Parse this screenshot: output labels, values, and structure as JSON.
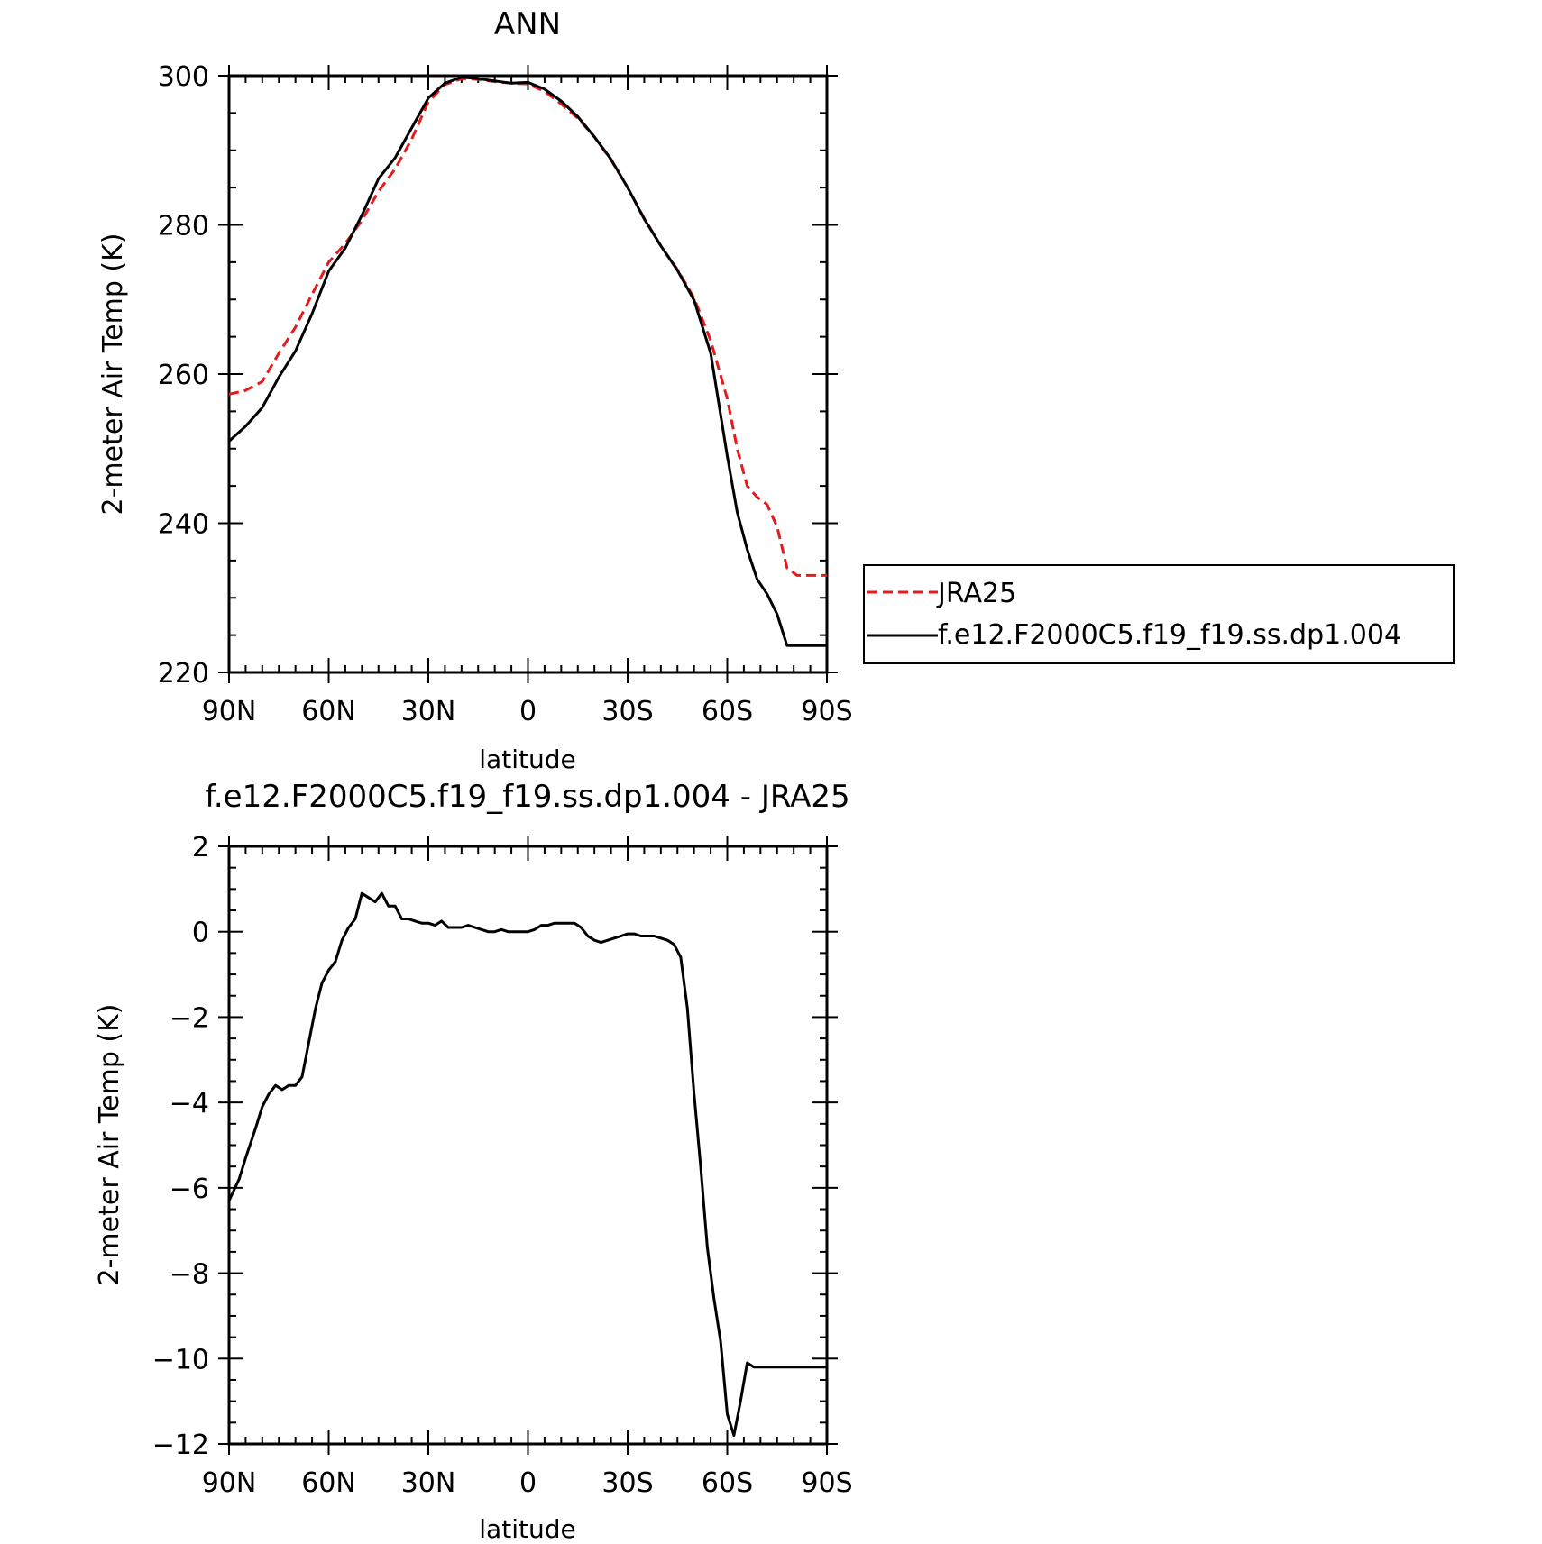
{
  "chart_data": [
    {
      "type": "line",
      "title": "ANN",
      "xlabel": "latitude",
      "ylabel": "2-meter Air Temp (K)",
      "xlim": [
        90,
        -90
      ],
      "ylim": [
        220,
        300
      ],
      "x_ticks": [
        90,
        60,
        30,
        0,
        -30,
        -60,
        -90
      ],
      "x_tick_labels": [
        "90N",
        "60N",
        "30N",
        "0",
        "30S",
        "60S",
        "90S"
      ],
      "y_ticks": [
        220,
        240,
        260,
        280,
        300
      ],
      "y_tick_labels": [
        "220",
        "240",
        "260",
        "280",
        "300"
      ],
      "grid": false,
      "legend": {
        "placement": "right",
        "entries": [
          "JRA25",
          "f.e12.F2000C5.f19_f19.ss.dp1.004"
        ]
      },
      "series": [
        {
          "name": "JRA25",
          "color": "#e41a1c",
          "dash": "dashed",
          "x": [
            90,
            85,
            80,
            75,
            70,
            65,
            60,
            55,
            50,
            45,
            40,
            35,
            30,
            25,
            20,
            15,
            10,
            5,
            0,
            -5,
            -10,
            -15,
            -20,
            -25,
            -30,
            -35,
            -40,
            -45,
            -50,
            -55,
            -60,
            -63,
            -66,
            -69,
            -72,
            -75,
            -78,
            -81,
            -84,
            -87,
            -90
          ],
          "y": [
            257.3,
            257.8,
            259.0,
            262.8,
            266.3,
            270.7,
            275.0,
            277.5,
            280.6,
            284.5,
            287.5,
            291.5,
            296.5,
            298.8,
            299.6,
            299.5,
            299.2,
            299.0,
            298.9,
            297.9,
            296.2,
            294.3,
            291.8,
            288.7,
            285.0,
            280.9,
            277.2,
            274.0,
            270.2,
            264.5,
            256.7,
            250.0,
            245.0,
            243.5,
            242.5,
            239.5,
            234.0,
            233.0,
            233.0,
            233.0,
            233.0
          ]
        },
        {
          "name": "f.e12.F2000C5.f19_f19.ss.dp1.004",
          "color": "#000000",
          "dash": "solid",
          "x": [
            90,
            85,
            80,
            75,
            70,
            65,
            60,
            55,
            50,
            45,
            40,
            35,
            30,
            25,
            20,
            15,
            10,
            5,
            0,
            -5,
            -10,
            -15,
            -20,
            -25,
            -30,
            -35,
            -40,
            -45,
            -50,
            -55,
            -60,
            -63,
            -66,
            -69,
            -72,
            -75,
            -78,
            -81,
            -84,
            -87,
            -90
          ],
          "y": [
            251.0,
            253.0,
            255.5,
            259.6,
            263.1,
            268.1,
            273.8,
            276.9,
            281.3,
            286.2,
            289.0,
            293.0,
            297.0,
            299.0,
            299.8,
            299.6,
            299.3,
            299.0,
            299.1,
            298.2,
            296.6,
            294.5,
            291.8,
            288.8,
            285.0,
            280.8,
            277.2,
            273.9,
            269.9,
            262.8,
            249.0,
            241.5,
            236.5,
            232.5,
            230.5,
            227.8,
            223.6,
            223.6,
            223.6,
            223.6,
            223.6
          ]
        }
      ]
    },
    {
      "type": "line",
      "title": "f.e12.F2000C5.f19_f19.ss.dp1.004 - JRA25",
      "xlabel": "latitude",
      "ylabel": "2-meter Air Temp (K)",
      "xlim": [
        90,
        -90
      ],
      "ylim": [
        -12,
        2
      ],
      "x_ticks": [
        90,
        60,
        30,
        0,
        -30,
        -60,
        -90
      ],
      "x_tick_labels": [
        "90N",
        "60N",
        "30N",
        "0",
        "30S",
        "60S",
        "90S"
      ],
      "y_ticks": [
        -12,
        -10,
        -8,
        -6,
        -4,
        -2,
        0,
        2
      ],
      "y_tick_labels": [
        "−12",
        "−10",
        "−8",
        "−6",
        "−4",
        "−2",
        "0",
        "2"
      ],
      "grid": false,
      "series": [
        {
          "color": "#000000",
          "dash": "solid",
          "x": [
            90,
            87,
            85,
            82,
            80,
            78,
            76,
            74,
            72,
            70,
            68,
            66,
            64,
            62,
            60,
            58,
            56,
            54,
            52,
            50,
            48,
            46,
            44,
            42,
            40,
            38,
            36,
            34,
            32,
            30,
            28,
            26,
            24,
            22,
            20,
            18,
            16,
            14,
            12,
            10,
            8,
            6,
            4,
            2,
            0,
            -2,
            -4,
            -6,
            -8,
            -10,
            -12,
            -14,
            -16,
            -18,
            -20,
            -22,
            -24,
            -26,
            -28,
            -30,
            -32,
            -34,
            -36,
            -38,
            -40,
            -42,
            -44,
            -46,
            -48,
            -50,
            -52,
            -54,
            -56,
            -58,
            -60,
            -62,
            -64,
            -66,
            -68,
            -70,
            -72,
            -74,
            -76,
            -78,
            -80,
            -82,
            -84,
            -86,
            -88,
            -90
          ],
          "y": [
            -6.3,
            -5.8,
            -5.3,
            -4.6,
            -4.1,
            -3.8,
            -3.6,
            -3.7,
            -3.6,
            -3.6,
            -3.4,
            -2.6,
            -1.8,
            -1.2,
            -0.9,
            -0.7,
            -0.2,
            0.1,
            0.3,
            0.9,
            0.8,
            0.7,
            0.9,
            0.6,
            0.6,
            0.3,
            0.3,
            0.25,
            0.2,
            0.2,
            0.15,
            0.25,
            0.1,
            0.1,
            0.1,
            0.15,
            0.1,
            0.05,
            0.0,
            0.0,
            0.05,
            0.0,
            0.0,
            0.0,
            0.0,
            0.05,
            0.15,
            0.15,
            0.2,
            0.2,
            0.2,
            0.2,
            0.1,
            -0.1,
            -0.2,
            -0.25,
            -0.2,
            -0.15,
            -0.1,
            -0.05,
            -0.05,
            -0.1,
            -0.1,
            -0.1,
            -0.15,
            -0.2,
            -0.3,
            -0.6,
            -1.8,
            -3.8,
            -5.5,
            -7.4,
            -8.6,
            -9.6,
            -11.3,
            -11.8,
            -11.0,
            -10.1,
            -10.2,
            -10.2,
            -10.2,
            -10.2,
            -10.2,
            -10.2,
            -10.2,
            -10.2,
            -10.2,
            -10.2,
            -10.2,
            -10.2
          ]
        }
      ]
    }
  ]
}
